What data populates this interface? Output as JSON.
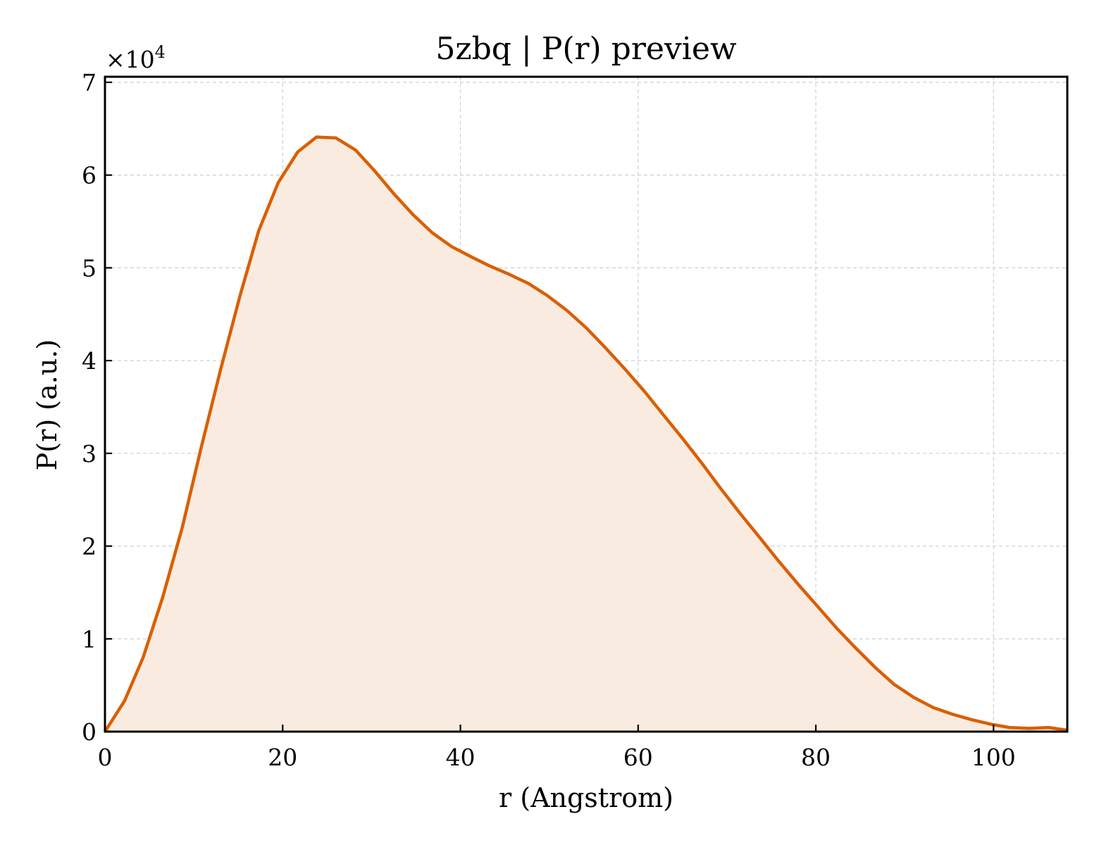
{
  "chart_data": {
    "type": "area",
    "title": "5zbq | P(r) preview",
    "xlabel": "r (Angstrom)",
    "ylabel": "P(r) (a.u.)",
    "y_multiplier": {
      "base": "×10",
      "exponent": "4"
    },
    "xlim": [
      0,
      108.3
    ],
    "ylim": [
      0,
      70600
    ],
    "x_ticks": [
      0,
      20,
      40,
      60,
      80,
      100
    ],
    "x_tick_labels": [
      "0",
      "20",
      "40",
      "60",
      "80",
      "100"
    ],
    "y_ticks": [
      0,
      10000,
      20000,
      30000,
      40000,
      50000,
      60000,
      70000
    ],
    "y_tick_labels": [
      "0",
      "1",
      "2",
      "3",
      "4",
      "5",
      "6",
      "7"
    ],
    "grid": true,
    "line_color": "#d95f02",
    "fill_color": "#f9ebe0",
    "series": [
      {
        "x": [
          0,
          2.2,
          4.3,
          6.5,
          8.7,
          10.8,
          13.0,
          15.2,
          17.3,
          19.5,
          21.7,
          23.8,
          26.0,
          28.2,
          30.3,
          32.5,
          34.7,
          36.8,
          39.0,
          41.2,
          43.3,
          45.5,
          47.7,
          49.8,
          52.0,
          54.2,
          56.3,
          58.5,
          60.7,
          62.8,
          65.0,
          67.2,
          69.3,
          71.5,
          73.7,
          75.8,
          78.0,
          80.2,
          82.3,
          84.5,
          86.7,
          88.8,
          91.0,
          93.2,
          95.3,
          97.5,
          99.7,
          101.8,
          104.0,
          106.2,
          108.3
        ],
        "y": [
          0,
          3300,
          8000,
          14500,
          22000,
          30500,
          39000,
          47000,
          54000,
          59200,
          62500,
          64100,
          64000,
          62700,
          60500,
          58000,
          55700,
          53800,
          52300,
          51200,
          50200,
          49300,
          48300,
          47000,
          45400,
          43500,
          41400,
          39100,
          36700,
          34200,
          31600,
          28900,
          26200,
          23500,
          20900,
          18400,
          15900,
          13500,
          11200,
          9000,
          6900,
          5100,
          3700,
          2600,
          1900,
          1300,
          800,
          450,
          350,
          450,
          150
        ]
      }
    ]
  }
}
